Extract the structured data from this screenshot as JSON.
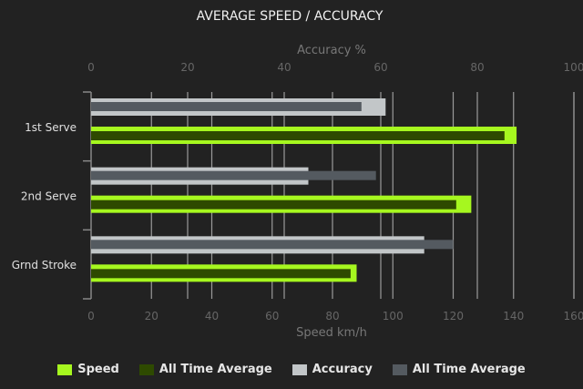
{
  "chart_data": {
    "type": "bar",
    "orientation": "horizontal",
    "title": "AVERAGE SPEED / ACCURACY",
    "categories": [
      "1st Serve",
      "2nd Serve",
      "Grnd Stroke"
    ],
    "x_bottom": {
      "label": "Speed km/h",
      "range": [
        0,
        160
      ],
      "ticks": [
        "0",
        "20",
        "40",
        "60",
        "80",
        "100",
        "120",
        "140",
        "160"
      ]
    },
    "x_top": {
      "label": "Accuracy %",
      "range": [
        0,
        100
      ],
      "ticks": [
        "0",
        "20",
        "40",
        "60",
        "80",
        "100"
      ]
    },
    "grid": true,
    "legend_position": "bottom",
    "series": [
      {
        "name": "Speed",
        "axis": "speed",
        "color": "#a6f71f",
        "values": [
          141,
          126,
          88
        ]
      },
      {
        "name": "All Time Average",
        "axis": "speed",
        "color": "#2e4a00",
        "values": [
          137,
          121,
          86
        ]
      },
      {
        "name": "Accuracy",
        "axis": "accuracy",
        "color": "#c2c6c8",
        "values": [
          61,
          45,
          69
        ]
      },
      {
        "name": "All Time Average",
        "axis": "accuracy",
        "color": "#545a60",
        "values": [
          56,
          59,
          75
        ]
      }
    ]
  }
}
